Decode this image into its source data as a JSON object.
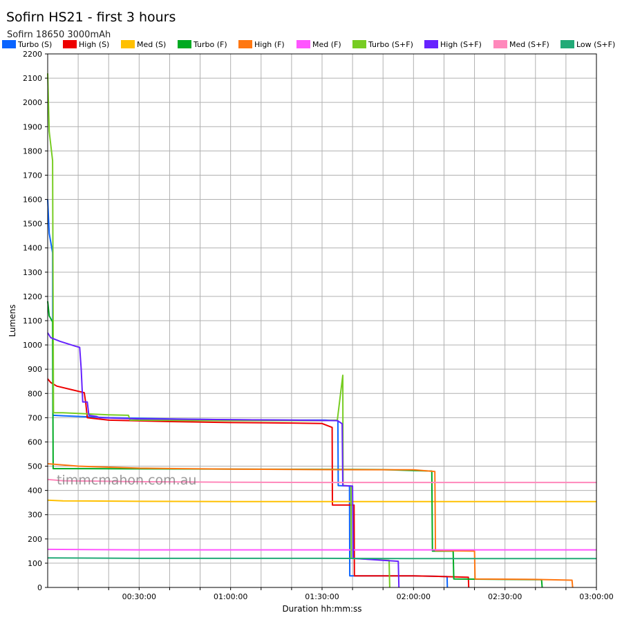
{
  "chart_data": {
    "type": "line",
    "title": "Sofirn HS21 - first 3 hours",
    "subtitle": "Sofirn 18650 3000mAh",
    "xlabel": "Duration hh:mm:ss",
    "ylabel": "Lumens",
    "watermark": "timmcmahon.com.au",
    "x_unit": "minutes",
    "xlim": [
      0,
      180
    ],
    "ylim": [
      0,
      2200
    ],
    "x_ticks": [
      {
        "value": 30,
        "label": "00:30:00"
      },
      {
        "value": 60,
        "label": "01:00:00"
      },
      {
        "value": 90,
        "label": "01:30:00"
      },
      {
        "value": 120,
        "label": "02:00:00"
      },
      {
        "value": 150,
        "label": "02:30:00"
      },
      {
        "value": 180,
        "label": "03:00:00"
      }
    ],
    "y_ticks": [
      0,
      100,
      200,
      300,
      400,
      500,
      600,
      700,
      800,
      900,
      1000,
      1100,
      1200,
      1300,
      1400,
      1500,
      1600,
      1700,
      1800,
      1900,
      2000,
      2100,
      2200
    ],
    "grid": true,
    "legend_position": "top",
    "series": [
      {
        "name": "Turbo (S)",
        "color": "#0a64ff",
        "points": [
          [
            0,
            1600
          ],
          [
            0.5,
            1460
          ],
          [
            1.6,
            1380
          ],
          [
            1.7,
            710
          ],
          [
            5,
            708
          ],
          [
            20,
            700
          ],
          [
            40,
            695
          ],
          [
            60,
            692
          ],
          [
            80,
            690
          ],
          [
            91,
            690
          ],
          [
            95.2,
            688
          ],
          [
            95.3,
            420
          ],
          [
            99,
            418
          ],
          [
            99.1,
            48
          ],
          [
            120,
            48
          ],
          [
            130,
            45
          ],
          [
            131,
            45
          ],
          [
            131.1,
            0
          ]
        ]
      },
      {
        "name": "High (S)",
        "color": "#ee0000",
        "points": [
          [
            0,
            860
          ],
          [
            1,
            845
          ],
          [
            3,
            830
          ],
          [
            8,
            815
          ],
          [
            12,
            803
          ],
          [
            12.5,
            760
          ],
          [
            13,
            700
          ],
          [
            20,
            690
          ],
          [
            40,
            684
          ],
          [
            60,
            680
          ],
          [
            80,
            678
          ],
          [
            90,
            676
          ],
          [
            93.3,
            660
          ],
          [
            93.4,
            340
          ],
          [
            100.5,
            340
          ],
          [
            100.6,
            48
          ],
          [
            120,
            48
          ],
          [
            130,
            45
          ],
          [
            138,
            42
          ],
          [
            138.1,
            0
          ]
        ]
      },
      {
        "name": "Med (S)",
        "color": "#ffc000",
        "points": [
          [
            0,
            360
          ],
          [
            5,
            357
          ],
          [
            30,
            355
          ],
          [
            60,
            354
          ],
          [
            90,
            354
          ],
          [
            120,
            354
          ],
          [
            150,
            354
          ],
          [
            180,
            354
          ]
        ]
      },
      {
        "name": "Turbo (F)",
        "color": "#00aa22",
        "points": [
          [
            0,
            1180
          ],
          [
            0.5,
            1120
          ],
          [
            1.6,
            1095
          ],
          [
            1.8,
            490
          ],
          [
            10,
            490
          ],
          [
            30,
            489
          ],
          [
            60,
            488
          ],
          [
            90,
            487
          ],
          [
            110,
            486
          ],
          [
            126,
            480
          ],
          [
            126.2,
            150
          ],
          [
            133,
            150
          ],
          [
            133.2,
            35
          ],
          [
            150,
            33
          ],
          [
            162,
            32
          ],
          [
            162.2,
            0
          ]
        ]
      },
      {
        "name": "High (F)",
        "color": "#ff7711",
        "points": [
          [
            0,
            510
          ],
          [
            10,
            500
          ],
          [
            30,
            492
          ],
          [
            60,
            488
          ],
          [
            90,
            486
          ],
          [
            120,
            485
          ],
          [
            127,
            478
          ],
          [
            127.2,
            152
          ],
          [
            140,
            150
          ],
          [
            140.2,
            35
          ],
          [
            160,
            33
          ],
          [
            172,
            30
          ],
          [
            172.2,
            0
          ]
        ]
      },
      {
        "name": "Med (F)",
        "color": "#ff55ff",
        "points": [
          [
            0,
            157
          ],
          [
            30,
            155
          ],
          [
            60,
            155
          ],
          [
            90,
            155
          ],
          [
            120,
            155
          ],
          [
            150,
            155
          ],
          [
            180,
            155
          ]
        ]
      },
      {
        "name": "Turbo (S+F)",
        "color": "#77cc22",
        "points": [
          [
            0,
            2120
          ],
          [
            0.5,
            1880
          ],
          [
            1.6,
            1760
          ],
          [
            1.9,
            720
          ],
          [
            5,
            720
          ],
          [
            20,
            712
          ],
          [
            26.5,
            710
          ],
          [
            27,
            690
          ],
          [
            60,
            688
          ],
          [
            90,
            688
          ],
          [
            95,
            690
          ],
          [
            96.8,
            875
          ],
          [
            96.9,
            420
          ],
          [
            99.5,
            418
          ],
          [
            99.6,
            120
          ],
          [
            112,
            112
          ],
          [
            112.2,
            0
          ]
        ]
      },
      {
        "name": "High (S+F)",
        "color": "#6622ff",
        "points": [
          [
            0,
            1050
          ],
          [
            1,
            1030
          ],
          [
            4,
            1015
          ],
          [
            9,
            995
          ],
          [
            10.5,
            990
          ],
          [
            11,
            900
          ],
          [
            11.5,
            765
          ],
          [
            13,
            765
          ],
          [
            13.5,
            710
          ],
          [
            16,
            705
          ],
          [
            17,
            700
          ],
          [
            30,
            695
          ],
          [
            60,
            692
          ],
          [
            80,
            690
          ],
          [
            95,
            688
          ],
          [
            96.6,
            675
          ],
          [
            96.8,
            420
          ],
          [
            100,
            418
          ],
          [
            100.2,
            120
          ],
          [
            110,
            112
          ],
          [
            115,
            108
          ],
          [
            115.2,
            0
          ]
        ]
      },
      {
        "name": "Med (S+F)",
        "color": "#ff88bb",
        "points": [
          [
            0,
            445
          ],
          [
            5,
            440
          ],
          [
            30,
            436
          ],
          [
            60,
            434
          ],
          [
            90,
            433
          ],
          [
            120,
            433
          ],
          [
            150,
            433
          ],
          [
            180,
            433
          ]
        ]
      },
      {
        "name": "Low (S+F)",
        "color": "#22aa77",
        "points": [
          [
            0,
            122
          ],
          [
            30,
            120
          ],
          [
            60,
            120
          ],
          [
            90,
            120
          ],
          [
            120,
            119
          ],
          [
            150,
            119
          ],
          [
            180,
            119
          ]
        ]
      }
    ]
  }
}
